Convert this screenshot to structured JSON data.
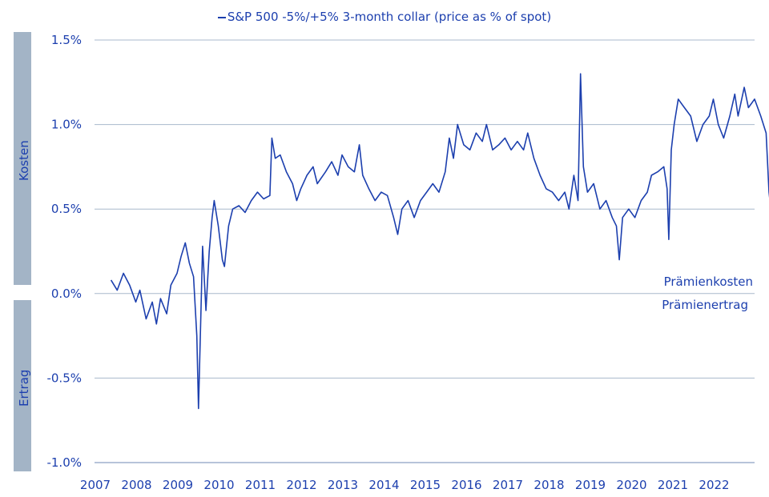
{
  "chart_data": {
    "type": "line",
    "title": "",
    "xlabel": "",
    "ylabel": "",
    "series": [
      {
        "name": "S&P 500 -5%/+5% 3-month collar (price as % of spot)",
        "color": "#1c3fae",
        "points": [
          [
            2007.4,
            0.08
          ],
          [
            2007.55,
            0.02
          ],
          [
            2007.7,
            0.12
          ],
          [
            2007.85,
            0.05
          ],
          [
            2008.0,
            -0.05
          ],
          [
            2008.1,
            0.02
          ],
          [
            2008.25,
            -0.15
          ],
          [
            2008.4,
            -0.05
          ],
          [
            2008.5,
            -0.18
          ],
          [
            2008.6,
            -0.03
          ],
          [
            2008.75,
            -0.12
          ],
          [
            2008.85,
            0.05
          ],
          [
            2009.0,
            0.12
          ],
          [
            2009.1,
            0.22
          ],
          [
            2009.2,
            0.3
          ],
          [
            2009.3,
            0.18
          ],
          [
            2009.4,
            0.1
          ],
          [
            2009.48,
            -0.25
          ],
          [
            2009.52,
            -0.68
          ],
          [
            2009.58,
            -0.1
          ],
          [
            2009.62,
            0.28
          ],
          [
            2009.7,
            -0.1
          ],
          [
            2009.78,
            0.25
          ],
          [
            2009.85,
            0.45
          ],
          [
            2009.9,
            0.55
          ],
          [
            2010.0,
            0.4
          ],
          [
            2010.1,
            0.2
          ],
          [
            2010.15,
            0.16
          ],
          [
            2010.25,
            0.4
          ],
          [
            2010.35,
            0.5
          ],
          [
            2010.5,
            0.52
          ],
          [
            2010.65,
            0.48
          ],
          [
            2010.8,
            0.55
          ],
          [
            2010.95,
            0.6
          ],
          [
            2011.1,
            0.56
          ],
          [
            2011.25,
            0.58
          ],
          [
            2011.3,
            0.92
          ],
          [
            2011.38,
            0.8
          ],
          [
            2011.5,
            0.82
          ],
          [
            2011.65,
            0.72
          ],
          [
            2011.8,
            0.65
          ],
          [
            2011.9,
            0.55
          ],
          [
            2012.0,
            0.62
          ],
          [
            2012.15,
            0.7
          ],
          [
            2012.3,
            0.75
          ],
          [
            2012.4,
            0.65
          ],
          [
            2012.6,
            0.72
          ],
          [
            2012.75,
            0.78
          ],
          [
            2012.9,
            0.7
          ],
          [
            2013.0,
            0.82
          ],
          [
            2013.15,
            0.75
          ],
          [
            2013.3,
            0.72
          ],
          [
            2013.42,
            0.88
          ],
          [
            2013.5,
            0.7
          ],
          [
            2013.65,
            0.62
          ],
          [
            2013.8,
            0.55
          ],
          [
            2013.95,
            0.6
          ],
          [
            2014.1,
            0.58
          ],
          [
            2014.25,
            0.45
          ],
          [
            2014.35,
            0.35
          ],
          [
            2014.45,
            0.5
          ],
          [
            2014.6,
            0.55
          ],
          [
            2014.75,
            0.45
          ],
          [
            2014.9,
            0.55
          ],
          [
            2015.05,
            0.6
          ],
          [
            2015.2,
            0.65
          ],
          [
            2015.35,
            0.6
          ],
          [
            2015.5,
            0.72
          ],
          [
            2015.6,
            0.92
          ],
          [
            2015.7,
            0.8
          ],
          [
            2015.8,
            1.0
          ],
          [
            2015.95,
            0.88
          ],
          [
            2016.1,
            0.85
          ],
          [
            2016.25,
            0.95
          ],
          [
            2016.4,
            0.9
          ],
          [
            2016.5,
            1.0
          ],
          [
            2016.65,
            0.85
          ],
          [
            2016.8,
            0.88
          ],
          [
            2016.95,
            0.92
          ],
          [
            2017.1,
            0.85
          ],
          [
            2017.25,
            0.9
          ],
          [
            2017.4,
            0.85
          ],
          [
            2017.5,
            0.95
          ],
          [
            2017.65,
            0.8
          ],
          [
            2017.8,
            0.7
          ],
          [
            2017.95,
            0.62
          ],
          [
            2018.1,
            0.6
          ],
          [
            2018.25,
            0.55
          ],
          [
            2018.4,
            0.6
          ],
          [
            2018.5,
            0.5
          ],
          [
            2018.62,
            0.7
          ],
          [
            2018.72,
            0.55
          ],
          [
            2018.78,
            1.3
          ],
          [
            2018.85,
            0.75
          ],
          [
            2018.95,
            0.6
          ],
          [
            2019.1,
            0.65
          ],
          [
            2019.25,
            0.5
          ],
          [
            2019.4,
            0.55
          ],
          [
            2019.55,
            0.45
          ],
          [
            2019.65,
            0.4
          ],
          [
            2019.72,
            0.2
          ],
          [
            2019.8,
            0.45
          ],
          [
            2019.95,
            0.5
          ],
          [
            2020.1,
            0.45
          ],
          [
            2020.25,
            0.55
          ],
          [
            2020.4,
            0.6
          ],
          [
            2020.5,
            0.7
          ],
          [
            2020.65,
            0.72
          ],
          [
            2020.8,
            0.75
          ],
          [
            2020.88,
            0.62
          ],
          [
            2020.92,
            0.32
          ],
          [
            2020.98,
            0.85
          ],
          [
            2021.05,
            1.0
          ],
          [
            2021.15,
            1.15
          ],
          [
            2021.3,
            1.1
          ],
          [
            2021.45,
            1.05
          ],
          [
            2021.6,
            0.9
          ],
          [
            2021.75,
            1.0
          ],
          [
            2021.9,
            1.05
          ],
          [
            2022.0,
            1.15
          ],
          [
            2022.12,
            1.0
          ],
          [
            2022.25,
            0.92
          ],
          [
            2022.4,
            1.05
          ],
          [
            2022.52,
            1.18
          ],
          [
            2022.6,
            1.05
          ],
          [
            2022.75,
            1.22
          ],
          [
            2022.85,
            1.1
          ],
          [
            2023.0,
            1.15
          ],
          [
            2023.15,
            1.05
          ],
          [
            2023.28,
            0.95
          ],
          [
            2023.35,
            0.6
          ],
          [
            2023.42,
            0.45
          ],
          [
            2023.5,
            0.55
          ],
          [
            2023.58,
            0.3
          ],
          [
            2023.65,
            0.42
          ],
          [
            2023.72,
            0.28
          ],
          [
            2023.8,
            0.38
          ]
        ]
      }
    ],
    "x_ticks": [
      "2007",
      "2008",
      "2009",
      "2010",
      "2011",
      "2012",
      "2013",
      "2014",
      "2015",
      "2016",
      "2017",
      "2018",
      "2019",
      "2020",
      "2021",
      "2022"
    ],
    "y_ticks": [
      "1.5%",
      "1.0%",
      "0.5%",
      "0.0%",
      "-0.5%",
      "-1.0%"
    ],
    "xlim": [
      2007,
      2023
    ],
    "ylim": [
      -1.0,
      1.5
    ],
    "grid": "horizontal",
    "legend": "top-center",
    "side_labels": {
      "upper": "Kosten",
      "lower": "Ertrag"
    },
    "annotations": {
      "above_zero": "Prämienkosten",
      "below_zero": "Prämienertrag"
    }
  }
}
